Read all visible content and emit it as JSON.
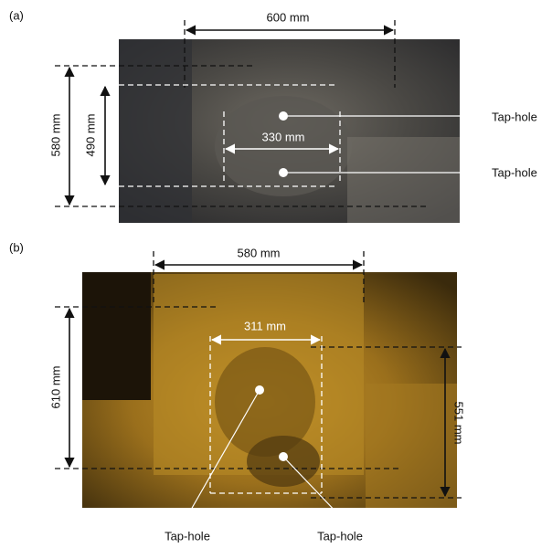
{
  "panels": [
    {
      "label": "(a)",
      "dimensions": [
        "600 mm",
        "580 mm",
        "490 mm",
        "330 mm"
      ],
      "callouts": [
        "Tap-hole",
        "Tap-hole"
      ]
    },
    {
      "label": "(b)",
      "dimensions": [
        "580 mm",
        "311 mm",
        "610 mm",
        "551 mm"
      ],
      "callouts": [
        "Tap-hole",
        "Tap-hole"
      ]
    }
  ]
}
